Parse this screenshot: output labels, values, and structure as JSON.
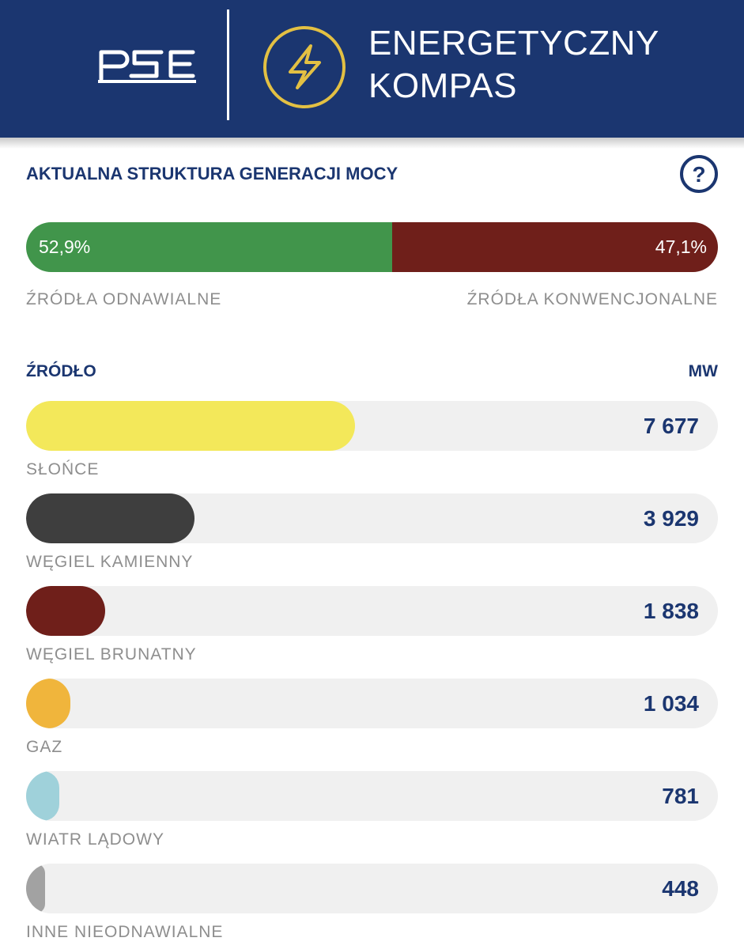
{
  "header": {
    "logo_text": "PSE",
    "title_line1": "ENERGETYCZNY",
    "title_line2": "KOMPAS",
    "background_color": "#1b3670",
    "accent_color": "#e3c043",
    "icon": "lightning-bolt-icon"
  },
  "structure": {
    "title": "AKTUALNA STRUKTURA GENERACJI MOCY",
    "help_icon": "question-circle-icon",
    "renewable": {
      "label": "ŹRÓDŁA ODNAWIALNE",
      "percent": "52,9%",
      "share": 0.529,
      "color": "#41954b"
    },
    "conventional": {
      "label": "ŹRÓDŁA KONWENCJONALNE",
      "percent": "47,1%",
      "share": 0.471,
      "color": "#6f1f1a"
    }
  },
  "sources": {
    "header_source": "ŹRÓDŁO",
    "header_unit": "MW",
    "items": [
      {
        "label": "SŁOŃCE",
        "value": "7 677",
        "mw": 7677,
        "color": "#f3e85a"
      },
      {
        "label": "WĘGIEL KAMIENNY",
        "value": "3 929",
        "mw": 3929,
        "color": "#3e3e3e"
      },
      {
        "label": "WĘGIEL BRUNATNY",
        "value": "1 838",
        "mw": 1838,
        "color": "#6f1f1a"
      },
      {
        "label": "GAZ",
        "value": "1 034",
        "mw": 1034,
        "color": "#f0b53c"
      },
      {
        "label": "WIATR LĄDOWY",
        "value": "781",
        "mw": 781,
        "color": "#9fd1da"
      },
      {
        "label": "INNE NIEODNAWIALNE",
        "value": "448",
        "mw": 448,
        "color": "#a2a2a2"
      }
    ]
  }
}
